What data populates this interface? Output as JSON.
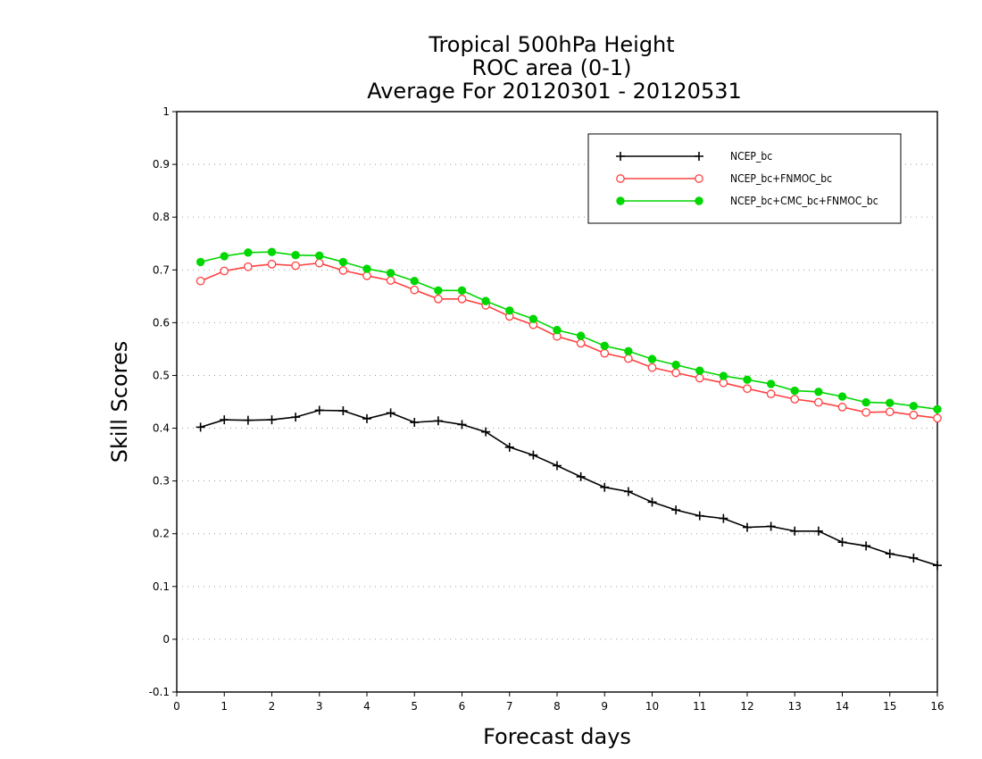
{
  "chart_data": {
    "type": "line",
    "title": [
      "Tropical 500hPa Height",
      "ROC area (0-1)",
      "Average For 20120301 - 20120531"
    ],
    "xlabel": "Forecast days",
    "ylabel": "Skill Scores",
    "xlim": [
      0,
      16
    ],
    "ylim": [
      -0.1,
      1
    ],
    "xticks": [
      0,
      1,
      2,
      3,
      4,
      5,
      6,
      7,
      8,
      9,
      10,
      11,
      12,
      13,
      14,
      15,
      16
    ],
    "yticks": [
      -0.1,
      0,
      0.1,
      0.2,
      0.3,
      0.4,
      0.5,
      0.6,
      0.7,
      0.8,
      0.9,
      1
    ],
    "ytick_labels": [
      "-0.1",
      "0",
      "0.1",
      "0.2",
      "0.3",
      "0.4",
      "0.5",
      "0.6",
      "0.7",
      "0.8",
      "0.9",
      "1"
    ],
    "grid": "horizontal dotted",
    "legend_position": "top-right",
    "x": [
      0.5,
      1.0,
      1.5,
      2.0,
      2.5,
      3.0,
      3.5,
      4.0,
      4.5,
      5.0,
      5.5,
      6.0,
      6.5,
      7.0,
      7.5,
      8.0,
      8.5,
      9.0,
      9.5,
      10.0,
      10.5,
      11.0,
      11.5,
      12.0,
      12.5,
      13.0,
      13.5,
      14.0,
      14.5,
      15.0,
      15.5,
      16.0
    ],
    "series": [
      {
        "name": "NCEP_bc",
        "color": "#000000",
        "marker": "plus",
        "values": [
          0.402,
          0.416,
          0.415,
          0.416,
          0.421,
          0.434,
          0.433,
          0.418,
          0.429,
          0.411,
          0.414,
          0.407,
          0.393,
          0.364,
          0.349,
          0.329,
          0.308,
          0.288,
          0.28,
          0.26,
          0.245,
          0.234,
          0.229,
          0.212,
          0.214,
          0.205,
          0.205,
          0.184,
          0.177,
          0.162,
          0.154,
          0.14
        ]
      },
      {
        "name": "NCEP_bc+FNMOC_bc",
        "color": "#ff4040",
        "marker": "open-circle",
        "values": [
          0.679,
          0.698,
          0.706,
          0.711,
          0.708,
          0.713,
          0.699,
          0.689,
          0.68,
          0.662,
          0.645,
          0.645,
          0.633,
          0.612,
          0.596,
          0.574,
          0.561,
          0.542,
          0.532,
          0.515,
          0.505,
          0.495,
          0.486,
          0.475,
          0.465,
          0.455,
          0.449,
          0.44,
          0.43,
          0.431,
          0.425,
          0.419
        ]
      },
      {
        "name": "NCEP_bc+CMC_bc+FNMOC_bc",
        "color": "#00d700",
        "marker": "filled-circle",
        "values": [
          0.715,
          0.726,
          0.733,
          0.734,
          0.728,
          0.727,
          0.715,
          0.702,
          0.694,
          0.679,
          0.661,
          0.661,
          0.641,
          0.623,
          0.607,
          0.586,
          0.575,
          0.556,
          0.546,
          0.531,
          0.52,
          0.509,
          0.499,
          0.492,
          0.484,
          0.471,
          0.469,
          0.46,
          0.449,
          0.448,
          0.442,
          0.436
        ]
      }
    ]
  }
}
